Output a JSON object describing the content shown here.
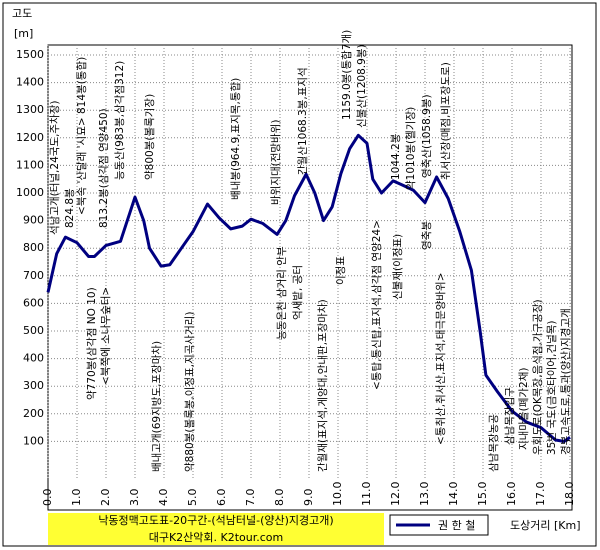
{
  "chart_data": {
    "type": "line",
    "y_label": "고도",
    "y_unit": "[m]",
    "x_label": "도상거리 [Km]",
    "footer_title": "낙동정맥고도표-20구간-(석남터널-(양산)지경고개)",
    "footer_credit": "대구K2산악회. K2tour.com",
    "grid": true,
    "ylim": [
      0,
      1500
    ],
    "yticks": [
      100,
      200,
      300,
      400,
      500,
      600,
      700,
      800,
      900,
      1000,
      1100,
      1200,
      1300,
      1400,
      1500
    ],
    "xlim": [
      0,
      18
    ],
    "xticks": [
      {
        "value": 0,
        "label": "0.0"
      },
      {
        "value": 1,
        "label": "1.0"
      },
      {
        "value": 2,
        "label": "2.0"
      },
      {
        "value": 3,
        "label": "3.0"
      },
      {
        "value": 4,
        "label": "4.0"
      },
      {
        "value": 5,
        "label": "5.0"
      },
      {
        "value": 6,
        "label": "6.0"
      },
      {
        "value": 7,
        "label": "7.0"
      },
      {
        "value": 8,
        "label": "8.0"
      },
      {
        "value": 9,
        "label": "9.0"
      },
      {
        "value": 10,
        "label": "10.0"
      },
      {
        "value": 11,
        "label": "11.0"
      },
      {
        "value": 12,
        "label": "12.0"
      },
      {
        "value": 13,
        "label": "13.0"
      },
      {
        "value": 14,
        "label": "14.0"
      },
      {
        "value": 15,
        "label": "15.0"
      },
      {
        "value": 16,
        "label": "16.0"
      },
      {
        "value": 17,
        "label": "17.0"
      },
      {
        "value": 18,
        "label": "18.0"
      }
    ],
    "series": [
      {
        "name": "권 한 철",
        "color": "#000080",
        "x": [
          0,
          0.3,
          0.6,
          1.0,
          1.4,
          1.6,
          2.0,
          2.5,
          3.0,
          3.3,
          3.5,
          3.9,
          4.2,
          4.6,
          5.0,
          5.5,
          5.9,
          6.3,
          6.7,
          7.0,
          7.4,
          7.9,
          8.2,
          8.5,
          8.9,
          9.2,
          9.5,
          9.8,
          10.1,
          10.4,
          10.7,
          11.0,
          11.2,
          11.5,
          11.9,
          12.2,
          12.6,
          13.0,
          13.4,
          13.8,
          14.2,
          14.6,
          14.9,
          15.1,
          15.5,
          16.0,
          16.5,
          17.0,
          17.5,
          17.8,
          18.0
        ],
        "values": [
          640,
          780,
          840,
          820,
          770,
          770,
          810,
          825,
          985,
          900,
          800,
          735,
          740,
          800,
          860,
          960,
          910,
          870,
          880,
          905,
          890,
          850,
          900,
          990,
          1068,
          1000,
          900,
          950,
          1070,
          1160,
          1209,
          1180,
          1050,
          1000,
          1044,
          1030,
          1010,
          965,
          1058,
          980,
          860,
          720,
          500,
          340,
          280,
          210,
          170,
          150,
          105,
          100,
          115
        ]
      }
    ],
    "annotations": [
      "석남고개(터널,24국도,주차장)",
      "824.8봉",
      "<북속 '산달래 '시묘> 814봉(통합)",
      "813.2봉(삼각점 연양450)",
      "능동산(983봉,삼각점312)",
      "약800봉(볼록기장)",
      "배내봉(964.9,표지목,통합)",
      "바위지대(전망바위)",
      "간월산1068.3봉,표지석",
      "1159.0봉(통합7개)",
      "신불산(1208.9봉)",
      "1044.2봉",
      "약1010봉(헬기장)",
      "영축산(1058.9봉)",
      "취서산장(매점,비포장도로)",
      "약770봉(삼각점 NO 10)",
      "<북쪽에 소나무숲터>",
      "배내고개(69지방도,포장마차)",
      "약880봉(볼록봉,이정표,지곡사거리)",
      "능동온천 삼거리 안부",
      "억새밭, 공터",
      "간월재(표지석,게양대,안내판,포장마차)",
      "이정표",
      "<통탑,통신탑,표지석,삼각점 연양24>",
      "신불재(이정표)",
      "영축봉",
      "<통취산,취서산,표지석,태극문양바위>",
      "삼남목장농공",
      "삼남목장입구",
      "지내마을(폐가2채)",
      "우회도로(OK목장,음식점,가구공장)",
      "35번 국도(금호타이어,건널목)",
      "경부고속도로,통과(양산)지경고개"
    ]
  }
}
